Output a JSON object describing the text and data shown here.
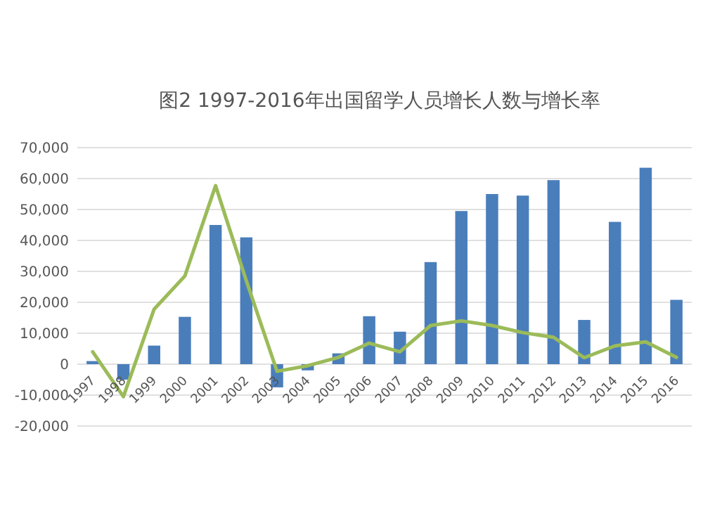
{
  "chart_data": {
    "type": "bar",
    "title": "图2  1997-2016年出国留学人员增长人数与增长率",
    "categories": [
      "1997",
      "1998",
      "1999",
      "2000",
      "2001",
      "2002",
      "2003",
      "2004",
      "2005",
      "2006",
      "2007",
      "2008",
      "2009",
      "2010",
      "2011",
      "2012",
      "2013",
      "2014",
      "2015",
      "2016"
    ],
    "series": [
      {
        "color": "#4a7ebb",
        "values": [
          1000,
          -5000,
          6000,
          15300,
          45000,
          41000,
          -7500,
          -2000,
          3500,
          15500,
          10500,
          33000,
          49500,
          55000,
          54500,
          59500,
          14300,
          46000,
          63500,
          20800
        ]
      },
      {
        "type": "line",
        "color": "#9bbb59",
        "values": [
          4000,
          -10500,
          17800,
          28500,
          57700,
          27000,
          -2300,
          -500,
          2200,
          6800,
          4000,
          12500,
          14000,
          12500,
          10200,
          8700,
          2100,
          5900,
          7200,
          2200
        ]
      }
    ],
    "ylim": [
      -20000,
      70000
    ],
    "yticks": [
      {
        "value": -20000,
        "label": "-20,000"
      },
      {
        "value": -10000,
        "label": "-10,000"
      },
      {
        "value": 0,
        "label": "0"
      },
      {
        "value": 10000,
        "label": "10,000"
      },
      {
        "value": 20000,
        "label": "20,000"
      },
      {
        "value": 30000,
        "label": "30,000"
      },
      {
        "value": 40000,
        "label": "40,000"
      },
      {
        "value": 50000,
        "label": "50,000"
      },
      {
        "value": 60000,
        "label": "60,000"
      },
      {
        "value": 70000,
        "label": "70,000"
      }
    ],
    "grid": "y",
    "marker": "none",
    "line_style": "solid"
  }
}
